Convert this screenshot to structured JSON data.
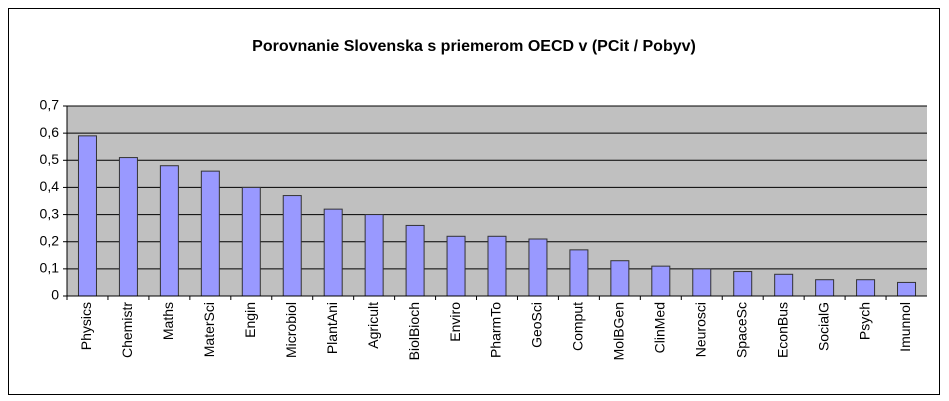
{
  "chart_data": {
    "type": "bar",
    "title": "Porovnanie Slovenska s priemerom OECD  v (PCit / Pobyv)",
    "categories": [
      "Physics",
      "Chemistr",
      "Maths",
      "MaterSci",
      "Engin",
      "Microbiol",
      "PlantAni",
      "Agricult",
      "BiolBioch",
      "Enviro",
      "PharmTo",
      "GeoSci",
      "Comput",
      "MolBGen",
      "ClinMed",
      "Neurosci",
      "SpaceSc",
      "EconBus",
      "SocialG",
      "Psych",
      "Imunnol"
    ],
    "values": [
      0.59,
      0.51,
      0.48,
      0.46,
      0.4,
      0.37,
      0.32,
      0.3,
      0.26,
      0.22,
      0.22,
      0.21,
      0.17,
      0.13,
      0.11,
      0.1,
      0.09,
      0.08,
      0.06,
      0.06,
      0.05
    ],
    "color": "#9999ff",
    "ylim": [
      0,
      0.7
    ],
    "yticks": [
      0,
      {
        "value": 0.1,
        "label": "0,1"
      },
      {
        "value": 0.2,
        "label": "0,2"
      },
      {
        "value": 0.3,
        "label": "0,3"
      },
      {
        "value": 0.4,
        "label": "0,4"
      },
      {
        "value": 0.5,
        "label": "0,5"
      },
      {
        "value": 0.6,
        "label": "0,6"
      },
      {
        "value": 0.7,
        "label": "0,7"
      }
    ],
    "grid": true
  }
}
